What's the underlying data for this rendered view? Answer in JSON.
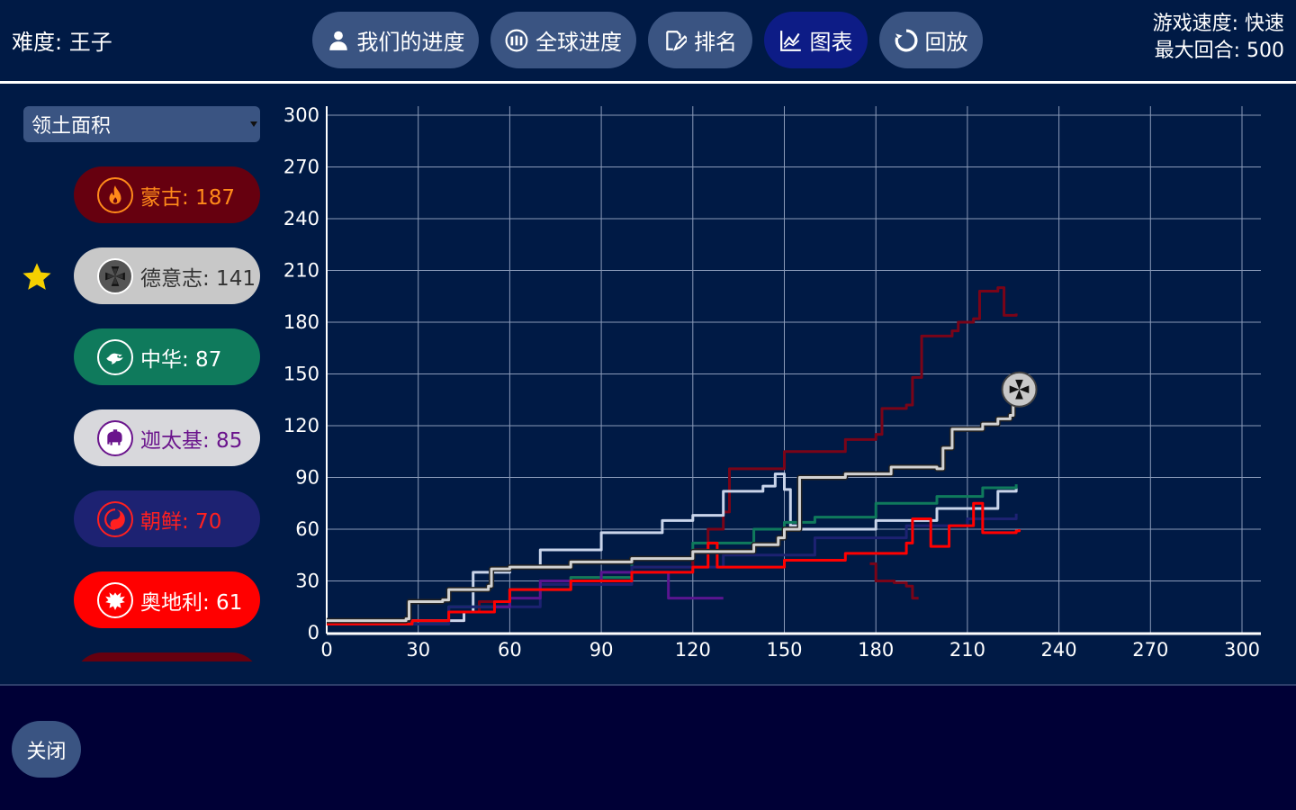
{
  "header": {
    "difficulty": "难度: 王子",
    "speed": "游戏速度: 快速",
    "max_turns": "最大回合: 500"
  },
  "tabs": [
    {
      "label": "我们的进度",
      "icon": "person-icon",
      "active": false
    },
    {
      "label": "全球进度",
      "icon": "globe-people-icon",
      "active": false
    },
    {
      "label": "排名",
      "icon": "edit-icon",
      "active": false
    },
    {
      "label": "图表",
      "icon": "chart-icon",
      "active": true
    },
    {
      "label": "回放",
      "icon": "replay-icon",
      "active": false
    }
  ],
  "dropdown": {
    "selected": "领土面积"
  },
  "civs": [
    {
      "label": "蒙古: 187",
      "bg": "#66000f",
      "fg": "#ff8a1a",
      "emblem_bg": "#66000f",
      "emblem_border": "#ff8a1a",
      "icon": "flame-icon"
    },
    {
      "label": "德意志: 141",
      "bg": "#c8c8c8",
      "fg": "#333333",
      "emblem_bg": "#555555",
      "emblem_border": "#ffffff",
      "icon": "iron-cross-icon",
      "player": true
    },
    {
      "label": "中华: 87",
      "bg": "#0f7a5c",
      "fg": "#ffffff",
      "emblem_bg": "#0f7a5c",
      "emblem_border": "#ffffff",
      "icon": "dragon-icon"
    },
    {
      "label": "迦太基: 85",
      "bg": "#d8d8dc",
      "fg": "#6a148c",
      "emblem_bg": "#ffffff",
      "emblem_border": "#6a148c",
      "icon": "elephant-icon"
    },
    {
      "label": "朝鲜: 70",
      "bg": "#1d2272",
      "fg": "#ff2020",
      "emblem_bg": "#1d2272",
      "emblem_border": "#ff2020",
      "icon": "taegeuk-icon"
    },
    {
      "label": "奥地利: 61",
      "bg": "#ff0000",
      "fg": "#ffffff",
      "emblem_bg": "#ff0000",
      "emblem_border": "#ffffff",
      "icon": "eagle-icon"
    }
  ],
  "chart_data": {
    "type": "line",
    "xlim": [
      0,
      300
    ],
    "ylim": [
      0,
      300
    ],
    "x_ticks": [
      0,
      30,
      60,
      90,
      120,
      150,
      180,
      210,
      240,
      270,
      300
    ],
    "y_ticks": [
      0,
      30,
      60,
      90,
      120,
      150,
      180,
      210,
      240,
      270,
      300
    ],
    "grid": true,
    "series": [
      {
        "color": "#7a0418",
        "values": [
          [
            0,
            5
          ],
          [
            28,
            7
          ],
          [
            45,
            12
          ],
          [
            50,
            18
          ],
          [
            60,
            25
          ],
          [
            80,
            32
          ],
          [
            100,
            38
          ],
          [
            120,
            48
          ],
          [
            125,
            60
          ],
          [
            130,
            70
          ],
          [
            132,
            95
          ],
          [
            150,
            105
          ],
          [
            170,
            112
          ],
          [
            180,
            115
          ],
          [
            182,
            130
          ],
          [
            190,
            132
          ],
          [
            192,
            148
          ],
          [
            195,
            172
          ],
          [
            205,
            175
          ],
          [
            207,
            180
          ],
          [
            212,
            182
          ],
          [
            214,
            198
          ],
          [
            220,
            200
          ],
          [
            222,
            184
          ],
          [
            226,
            185
          ]
        ]
      },
      {
        "color": "#7a0418",
        "values": [
          [
            178,
            40
          ],
          [
            180,
            30
          ],
          [
            186,
            29
          ],
          [
            190,
            27
          ],
          [
            192,
            20
          ],
          [
            194,
            20
          ]
        ]
      },
      {
        "color": "#c9d4ea",
        "values": [
          [
            0,
            5
          ],
          [
            28,
            7
          ],
          [
            45,
            12
          ],
          [
            48,
            35
          ],
          [
            60,
            38
          ],
          [
            70,
            48
          ],
          [
            90,
            58
          ],
          [
            110,
            65
          ],
          [
            120,
            68
          ],
          [
            130,
            82
          ],
          [
            143,
            85
          ],
          [
            147,
            92
          ],
          [
            150,
            83
          ],
          [
            152,
            62
          ],
          [
            155,
            60
          ],
          [
            180,
            65
          ],
          [
            200,
            72
          ],
          [
            220,
            82
          ],
          [
            226,
            84
          ]
        ]
      },
      {
        "color": "#0f7a5c",
        "values": [
          [
            0,
            5
          ],
          [
            40,
            15
          ],
          [
            60,
            25
          ],
          [
            80,
            32
          ],
          [
            100,
            43
          ],
          [
            120,
            52
          ],
          [
            140,
            60
          ],
          [
            150,
            64
          ],
          [
            160,
            67
          ],
          [
            180,
            75
          ],
          [
            200,
            79
          ],
          [
            215,
            84
          ],
          [
            226,
            86
          ]
        ]
      },
      {
        "color": "#1d2272",
        "values": [
          [
            0,
            5
          ],
          [
            40,
            15
          ],
          [
            70,
            28
          ],
          [
            100,
            38
          ],
          [
            130,
            45
          ],
          [
            160,
            55
          ],
          [
            190,
            62
          ],
          [
            210,
            66
          ],
          [
            226,
            69
          ]
        ]
      },
      {
        "color": "#5a1590",
        "values": [
          [
            55,
            15
          ],
          [
            60,
            20
          ],
          [
            70,
            30
          ],
          [
            90,
            35
          ],
          [
            110,
            35
          ],
          [
            112,
            20
          ],
          [
            120,
            20
          ],
          [
            130,
            20
          ]
        ]
      },
      {
        "color": "#ff0000",
        "values": [
          [
            0,
            5
          ],
          [
            28,
            7
          ],
          [
            40,
            12
          ],
          [
            55,
            18
          ],
          [
            60,
            25
          ],
          [
            80,
            30
          ],
          [
            100,
            35
          ],
          [
            120,
            38
          ],
          [
            125,
            52
          ],
          [
            128,
            38
          ],
          [
            150,
            42
          ],
          [
            170,
            46
          ],
          [
            190,
            52
          ],
          [
            192,
            66
          ],
          [
            197,
            66
          ],
          [
            198,
            50
          ],
          [
            203,
            50
          ],
          [
            204,
            62
          ],
          [
            212,
            75
          ],
          [
            215,
            58
          ],
          [
            226,
            59
          ],
          [
            227,
            60
          ]
        ]
      },
      {
        "color": "#d2d2d2",
        "border": true,
        "values": [
          [
            0,
            7
          ],
          [
            26,
            8
          ],
          [
            27,
            18
          ],
          [
            38,
            19
          ],
          [
            40,
            25
          ],
          [
            53,
            27
          ],
          [
            54,
            37
          ],
          [
            60,
            38
          ],
          [
            80,
            41
          ],
          [
            100,
            43
          ],
          [
            120,
            47
          ],
          [
            140,
            51
          ],
          [
            148,
            55
          ],
          [
            150,
            60
          ],
          [
            155,
            90
          ],
          [
            170,
            92
          ],
          [
            185,
            96
          ],
          [
            200,
            95
          ],
          [
            202,
            107
          ],
          [
            205,
            118
          ],
          [
            215,
            121
          ],
          [
            220,
            124
          ],
          [
            224,
            126
          ],
          [
            225,
            140
          ]
        ]
      }
    ],
    "player_marker": {
      "x": 227,
      "y": 141,
      "icon": "iron-cross-icon"
    }
  }
}
